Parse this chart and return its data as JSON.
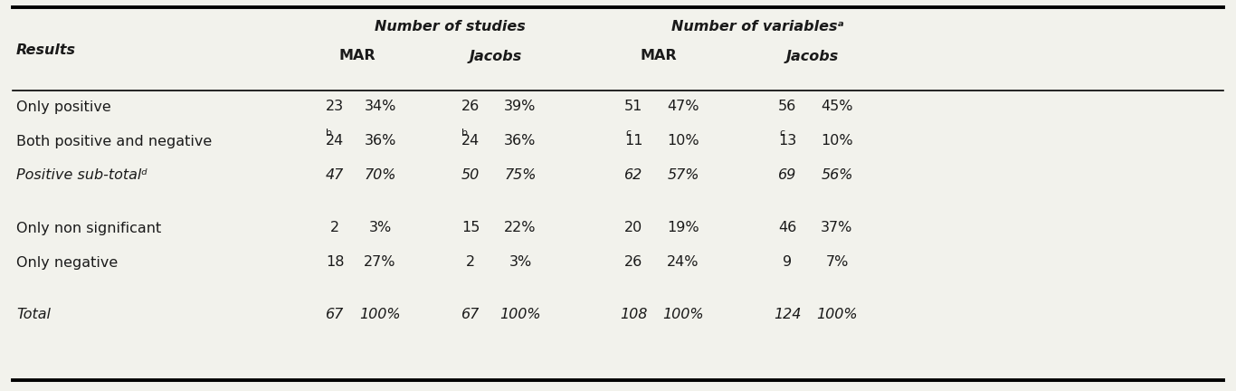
{
  "bg_color": "#f2f2ec",
  "text_color": "#1a1a1a",
  "header1": "Number of studies",
  "header2": "Number of variablesᵃ",
  "subheader_mar": "MAR",
  "subheader_jacobs": "Jacobs",
  "col_header": "Results",
  "figsize": [
    13.66,
    4.32
  ],
  "dpi": 100,
  "rows": [
    {
      "label": "Only positive",
      "mar_n": "23",
      "mar_pct": "34%",
      "jac_n": "26",
      "jac_pct": "39%",
      "mar_vn": "51",
      "mar_vpct": "47%",
      "jac_vn": "56",
      "jac_vpct": "45%",
      "mar_n_super": "",
      "jac_n_super": "",
      "mar_vn_super": "",
      "jac_vn_super": "",
      "italic": false,
      "spacer": false
    },
    {
      "label": "Both positive and negative",
      "mar_n": "24",
      "mar_pct": "36%",
      "jac_n": "24",
      "jac_pct": "36%",
      "mar_vn": "11",
      "mar_vpct": "10%",
      "jac_vn": "13",
      "jac_vpct": "10%",
      "mar_n_super": "b",
      "jac_n_super": "b",
      "mar_vn_super": "c",
      "jac_vn_super": "c",
      "italic": false,
      "spacer": false
    },
    {
      "label": "Positive sub-totalᵈ",
      "mar_n": "47",
      "mar_pct": "70%",
      "jac_n": "50",
      "jac_pct": "75%",
      "mar_vn": "62",
      "mar_vpct": "57%",
      "jac_vn": "69",
      "jac_vpct": "56%",
      "mar_n_super": "",
      "jac_n_super": "",
      "mar_vn_super": "",
      "jac_vn_super": "",
      "italic": true,
      "spacer": false
    },
    {
      "label": "",
      "mar_n": "",
      "mar_pct": "",
      "jac_n": "",
      "jac_pct": "",
      "mar_vn": "",
      "mar_vpct": "",
      "jac_vn": "",
      "jac_vpct": "",
      "mar_n_super": "",
      "jac_n_super": "",
      "mar_vn_super": "",
      "jac_vn_super": "",
      "italic": false,
      "spacer": true
    },
    {
      "label": "Only non significant",
      "mar_n": "2",
      "mar_pct": "3%",
      "jac_n": "15",
      "jac_pct": "22%",
      "mar_vn": "20",
      "mar_vpct": "19%",
      "jac_vn": "46",
      "jac_vpct": "37%",
      "mar_n_super": "",
      "jac_n_super": "",
      "mar_vn_super": "",
      "jac_vn_super": "",
      "italic": false,
      "spacer": false
    },
    {
      "label": "Only negative",
      "mar_n": "18",
      "mar_pct": "27%",
      "jac_n": "2",
      "jac_pct": "3%",
      "mar_vn": "26",
      "mar_vpct": "24%",
      "jac_vn": "9",
      "jac_vpct": "7%",
      "mar_n_super": "",
      "jac_n_super": "",
      "mar_vn_super": "",
      "jac_vn_super": "",
      "italic": false,
      "spacer": false
    },
    {
      "label": "",
      "mar_n": "",
      "mar_pct": "",
      "jac_n": "",
      "jac_pct": "",
      "mar_vn": "",
      "mar_vpct": "",
      "jac_vn": "",
      "jac_vpct": "",
      "mar_n_super": "",
      "jac_n_super": "",
      "mar_vn_super": "",
      "jac_vn_super": "",
      "italic": false,
      "spacer": true
    },
    {
      "label": "Total",
      "mar_n": "67",
      "mar_pct": "100%",
      "jac_n": "67",
      "jac_pct": "100%",
      "mar_vn": "108",
      "mar_vpct": "100%",
      "jac_vn": "124",
      "jac_vpct": "100%",
      "mar_n_super": "",
      "jac_n_super": "",
      "mar_vn_super": "",
      "jac_vn_super": "",
      "italic": true,
      "spacer": false
    }
  ]
}
